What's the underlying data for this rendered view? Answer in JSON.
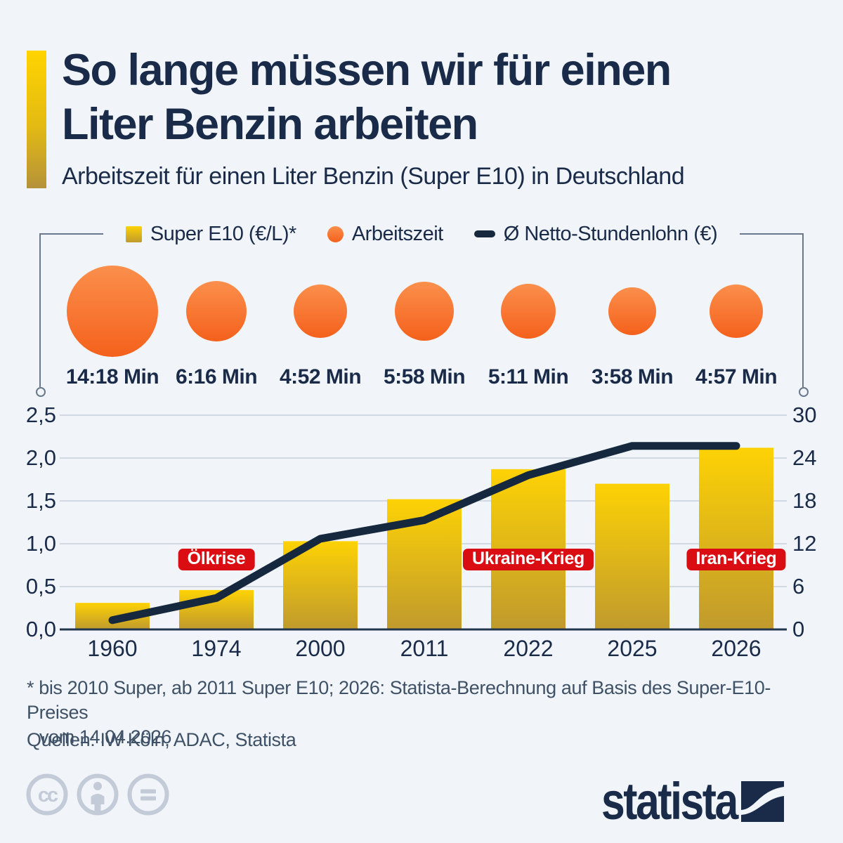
{
  "header": {
    "title_line1": "So lange müssen wir für einen",
    "title_line2": "Liter Benzin arbeiten",
    "subtitle": "Arbeitszeit für einen Liter Benzin (Super E10) in Deutschland"
  },
  "legend": {
    "items": [
      {
        "label": "Super E10 (€/L)*",
        "swatch": "square"
      },
      {
        "label": "Arbeitszeit",
        "swatch": "circle"
      },
      {
        "label": "Ø Netto-Stundenlohn (€)",
        "swatch": "dash"
      }
    ]
  },
  "chart_data": {
    "type": "bar",
    "categories": [
      "1960",
      "1974",
      "2000",
      "2011",
      "2022",
      "2025",
      "2026"
    ],
    "series": [
      {
        "name": "Super E10 (€/L)*",
        "type": "bar",
        "axis": "left",
        "values": [
          0.31,
          0.46,
          1.03,
          1.52,
          1.87,
          1.7,
          2.12
        ]
      },
      {
        "name": "Arbeitszeit",
        "type": "bubble",
        "unit": "Min",
        "labels": [
          "14:18 Min",
          "6:16 Min",
          "4:52 Min",
          "5:58 Min",
          "5:11 Min",
          "3:58 Min",
          "4:57 Min"
        ]
      },
      {
        "name": "Ø Netto-Stundenlohn (€)",
        "type": "line",
        "axis": "right",
        "values": [
          1.3,
          4.4,
          12.7,
          15.3,
          21.6,
          25.7,
          25.7
        ]
      }
    ],
    "left_axis": {
      "min": 0,
      "max": 2.5,
      "ticks": [
        "0,0",
        "0,5",
        "1,0",
        "1,5",
        "2,0",
        "2,5"
      ]
    },
    "right_axis": {
      "min": 0,
      "max": 30,
      "ticks": [
        "0",
        "6",
        "12",
        "18",
        "24",
        "30"
      ]
    },
    "annotations": [
      {
        "label": "Ölkrise",
        "category": "1974"
      },
      {
        "label": "Ukraine-Krieg",
        "category": "2022"
      },
      {
        "label": "Iran-Krieg",
        "category": "2026"
      }
    ],
    "grid": true,
    "legend_position": "top"
  },
  "footnote": {
    "line1": "* bis 2010 Super, ab 2011 Super E10; 2026: Statista-Berechnung auf Basis des Super-E10-Preises",
    "line2": "vom 14.04.2026"
  },
  "sources": {
    "text": "Quellen: IW Köln, ADAC, Statista"
  },
  "footer": {
    "logo_text": "statista"
  },
  "colors": {
    "background": "#f1f5f9",
    "navy": "#1a2b49",
    "line": "#16283e",
    "bar_top": "#fdd205",
    "bar_bottom": "#c09a2d",
    "orange_top": "#fb8f4c",
    "orange_bottom": "#f4611c",
    "red": "#d90d12",
    "grid": "#c7d0da",
    "axis": "#233650",
    "bracket": "#69788c",
    "footnote": "#3f5166",
    "cc_gray": "#c2cbd7",
    "white": "#ffffff"
  }
}
